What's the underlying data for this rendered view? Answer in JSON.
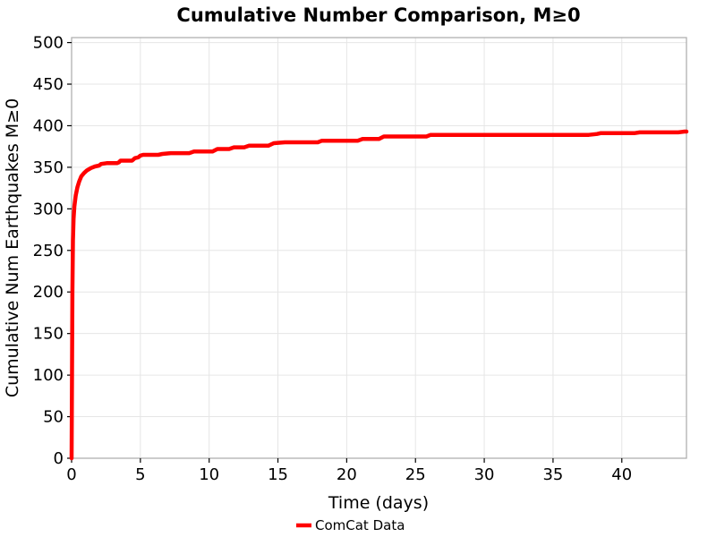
{
  "title": "Cumulative Number Comparison, M≥0",
  "chart_data": {
    "type": "line",
    "title": "Cumulative Number Comparison, M≥0",
    "xlabel": "Time (days)",
    "ylabel": "Cumulative Num Earthquakes M≥0",
    "xlim": [
      0,
      44.7
    ],
    "ylim": [
      0,
      506
    ],
    "xticks": [
      0,
      5,
      10,
      15,
      20,
      25,
      30,
      35,
      40
    ],
    "yticks": [
      0,
      50,
      100,
      150,
      200,
      250,
      300,
      350,
      400,
      450,
      500
    ],
    "grid": true,
    "legend_position": "bottom-center",
    "colors": {
      "curve": "#ff0000",
      "grid": "#e6e6e6",
      "spine": "#aaaaaa",
      "text": "#000000",
      "background": "#ffffff"
    },
    "series": [
      {
        "name": "ComCat Data",
        "color": "#ff0000",
        "points": [
          [
            0,
            0
          ],
          [
            0.06,
            200
          ],
          [
            0.1,
            262
          ],
          [
            0.14,
            288
          ],
          [
            0.2,
            303
          ],
          [
            0.3,
            316
          ],
          [
            0.42,
            326
          ],
          [
            0.55,
            333
          ],
          [
            0.7,
            339
          ],
          [
            0.9,
            343
          ],
          [
            1.1,
            346
          ],
          [
            1.4,
            349
          ],
          [
            1.7,
            351
          ],
          [
            2.0,
            352
          ],
          [
            2.15,
            354
          ],
          [
            2.55,
            355
          ],
          [
            3.3,
            355
          ],
          [
            3.45,
            356
          ],
          [
            3.55,
            358
          ],
          [
            4.4,
            358
          ],
          [
            4.6,
            361
          ],
          [
            4.85,
            362
          ],
          [
            5.0,
            364
          ],
          [
            5.2,
            365
          ],
          [
            6.3,
            365
          ],
          [
            6.6,
            366
          ],
          [
            7.2,
            367
          ],
          [
            8.55,
            367
          ],
          [
            8.9,
            369
          ],
          [
            10.25,
            369
          ],
          [
            10.6,
            372
          ],
          [
            11.45,
            372
          ],
          [
            11.8,
            374
          ],
          [
            12.55,
            374
          ],
          [
            12.9,
            376
          ],
          [
            14.3,
            376
          ],
          [
            14.7,
            379
          ],
          [
            15.5,
            380
          ],
          [
            17.9,
            380
          ],
          [
            18.2,
            382
          ],
          [
            20.8,
            382
          ],
          [
            21.15,
            384
          ],
          [
            22.35,
            384
          ],
          [
            22.7,
            387
          ],
          [
            25.8,
            387
          ],
          [
            26.1,
            389
          ],
          [
            37.6,
            389
          ],
          [
            38.2,
            390
          ],
          [
            38.45,
            391
          ],
          [
            40.9,
            391
          ],
          [
            41.3,
            392
          ],
          [
            44.1,
            392
          ],
          [
            44.55,
            393
          ],
          [
            44.7,
            393
          ]
        ]
      }
    ]
  }
}
